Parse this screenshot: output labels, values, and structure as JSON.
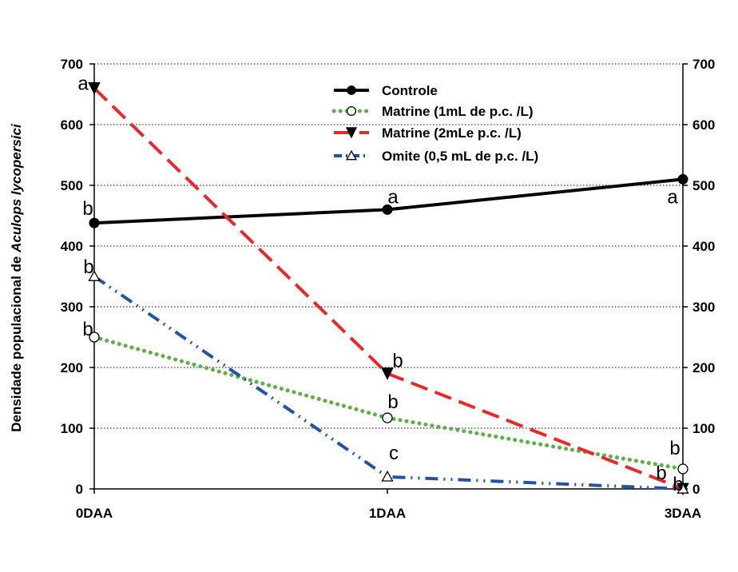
{
  "chart_data": {
    "type": "line",
    "categories": [
      "0DAA",
      "1DAA",
      "3DAA"
    ],
    "ylabel_prefix": "Densidade populacional de ",
    "ylabel_species": "Aculops lycopersici",
    "ylim": [
      0,
      700
    ],
    "yticks": [
      0,
      100,
      200,
      300,
      400,
      500,
      600,
      700
    ],
    "grid": true,
    "secondary_y_axis": true,
    "legend_position": "top-center",
    "series": [
      {
        "name": "Controle",
        "values": [
          438,
          460,
          510
        ],
        "color": "#000000",
        "dash": "solid",
        "marker": "filled-circle",
        "letters": [
          "b",
          "a",
          "a"
        ]
      },
      {
        "name": "Matrine (1mL de p.c. /L)",
        "values": [
          250,
          117,
          33
        ],
        "color": "#5bb146",
        "dash": "dotted",
        "marker": "open-circle",
        "letters": [
          "b",
          "b",
          "b"
        ]
      },
      {
        "name": "Matrine (2mLe p.c. /L)",
        "values": [
          660,
          190,
          0
        ],
        "color": "#e8282b",
        "dash": "dashed",
        "marker": "filled-triangle-down",
        "letters": [
          "a",
          "b",
          "b"
        ]
      },
      {
        "name": "Omite (0,5 mL de p.c. /L)",
        "values": [
          350,
          20,
          0
        ],
        "color": "#2453a6",
        "dash": "dash-dot-dot",
        "marker": "open-triangle-up",
        "letters": [
          "b",
          "c",
          "b"
        ]
      }
    ]
  }
}
